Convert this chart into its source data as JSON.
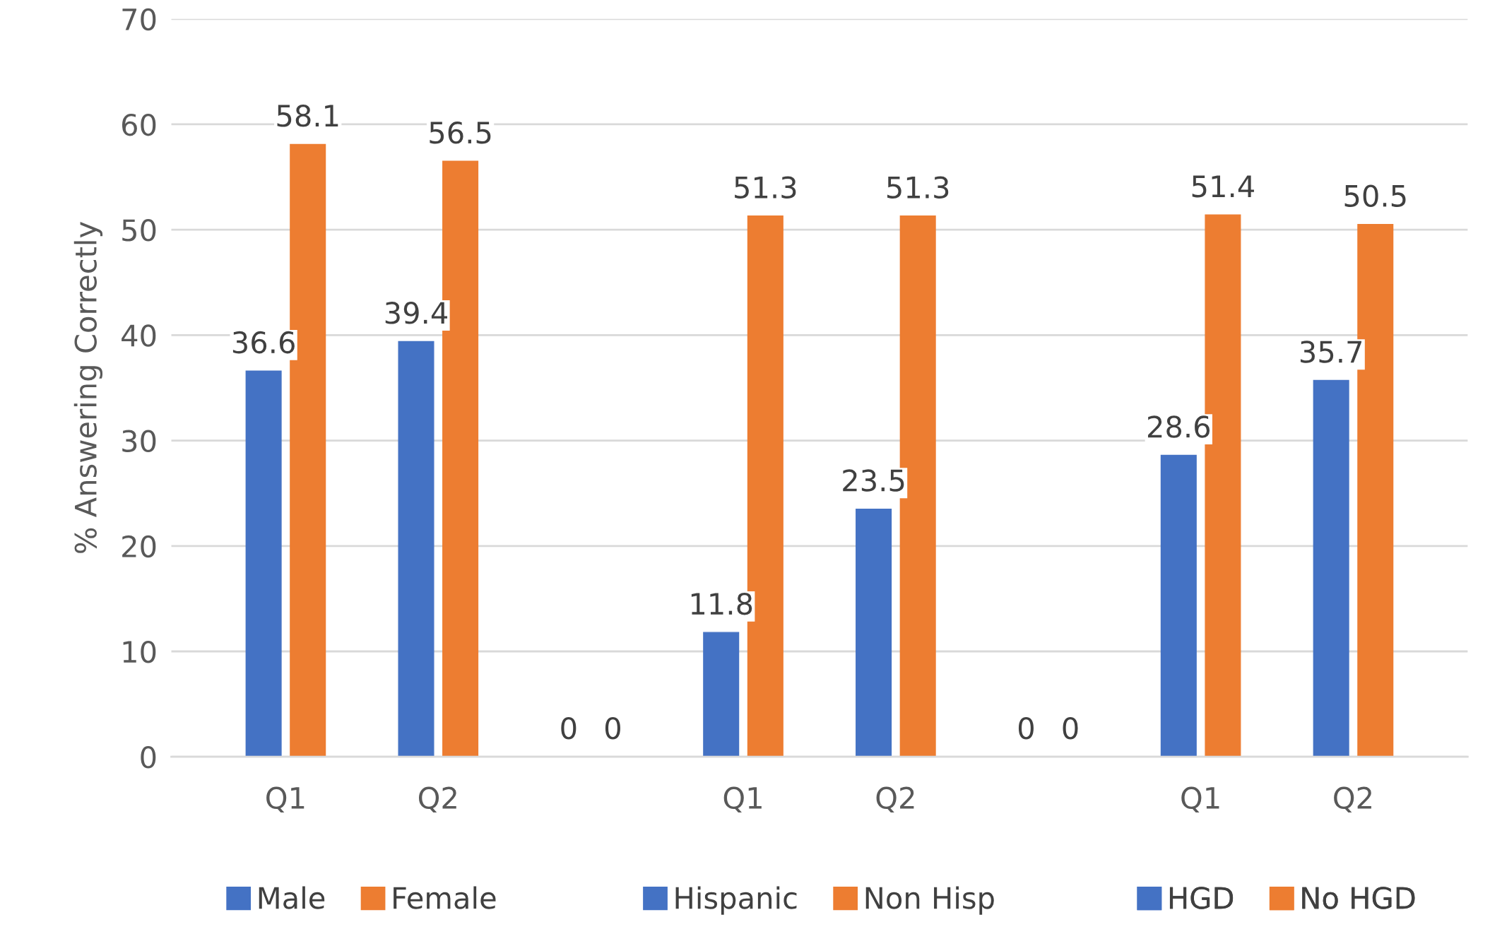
{
  "chart_data": {
    "type": "bar",
    "ylabel": "% Answering Correctly",
    "categories": [
      "Q1",
      "Q2",
      null,
      "Q1",
      "Q2",
      null,
      "Q1",
      "Q2"
    ],
    "series": [
      {
        "name": "Male",
        "color": "#4472c4",
        "values": [
          36.6,
          39.4,
          0,
          null,
          null,
          null,
          null,
          null
        ]
      },
      {
        "name": "Female",
        "color": "#ed7d31",
        "values": [
          58.1,
          56.5,
          0,
          null,
          null,
          null,
          null,
          null
        ]
      },
      {
        "name": "Hispanic",
        "color": "#4472c4",
        "values": [
          null,
          null,
          null,
          11.8,
          23.5,
          0,
          null,
          null
        ]
      },
      {
        "name": "Non Hisp",
        "color": "#ed7d31",
        "values": [
          null,
          null,
          null,
          51.3,
          51.3,
          0,
          null,
          null
        ]
      },
      {
        "name": "HGD",
        "color": "#4472c4",
        "values": [
          null,
          null,
          null,
          null,
          null,
          null,
          28.6,
          35.7
        ]
      },
      {
        "name": "No HGD",
        "color": "#ed7d31",
        "values": [
          null,
          null,
          null,
          null,
          null,
          null,
          51.4,
          50.5
        ]
      }
    ],
    "ylim": [
      0,
      70
    ],
    "yticks": [
      0,
      10,
      20,
      30,
      40,
      50,
      60,
      70
    ],
    "grid": "y",
    "data_labels": true,
    "legend": "bottom"
  }
}
